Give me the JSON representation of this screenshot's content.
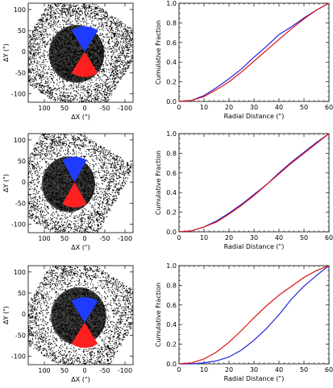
{
  "figure": {
    "rows": [
      {
        "left": {
          "type": "scatter",
          "xlabel": "ΔX (\")",
          "ylabel": "ΔY (\")",
          "xlim": [
            140,
            -120
          ],
          "ylim": [
            -120,
            115
          ],
          "xticks": [
            100,
            50,
            0,
            -50,
            -100
          ],
          "yticks": [
            -100,
            -50,
            0,
            50,
            100
          ],
          "field": {
            "center": [
              20,
              -5
            ],
            "halfwidth": 125,
            "rotation_deg": 33
          },
          "wedges": [
            {
              "name": "blue",
              "color": "#1f3bff",
              "apex": [
                0,
                0
              ],
              "radius": 60,
              "angle_from_deg": 57,
              "angle_to_deg": 123
            },
            {
              "name": "red",
              "color": "#ff1f1f",
              "apex": [
                0,
                0
              ],
              "radius": 60,
              "angle_from_deg": -123,
              "angle_to_deg": -57
            }
          ]
        },
        "right": {
          "type": "line",
          "xlabel": "Radial Distance (\")",
          "ylabel": "Cumulative Fraction",
          "xlim": [
            0,
            60
          ],
          "ylim": [
            0,
            1
          ],
          "xticks": [
            0,
            10,
            20,
            30,
            40,
            50,
            60
          ],
          "yticks": [
            0.0,
            0.2,
            0.4,
            0.6,
            0.8,
            1.0
          ],
          "series": [
            {
              "color": "#2222dd",
              "x": [
                0,
                5,
                10,
                15,
                20,
                25,
                30,
                35,
                40,
                45,
                50,
                55,
                60
              ],
              "y": [
                0,
                0.01,
                0.06,
                0.14,
                0.23,
                0.33,
                0.45,
                0.56,
                0.68,
                0.76,
                0.85,
                0.93,
                1.0
              ]
            },
            {
              "color": "#dd1111",
              "x": [
                0,
                5,
                10,
                15,
                20,
                25,
                30,
                35,
                40,
                45,
                50,
                55,
                60
              ],
              "y": [
                0,
                0.01,
                0.05,
                0.12,
                0.2,
                0.3,
                0.41,
                0.52,
                0.63,
                0.74,
                0.84,
                0.93,
                1.0
              ]
            }
          ]
        }
      },
      {
        "left": {
          "type": "scatter",
          "xlabel": "ΔX (\")",
          "ylabel": "ΔY (\")",
          "xlim": [
            140,
            -120
          ],
          "ylim": [
            -120,
            115
          ],
          "xticks": [
            100,
            50,
            0,
            -50,
            -100
          ],
          "yticks": [
            -100,
            -50,
            0,
            50,
            100
          ],
          "field": {
            "center": [
              40,
              -5
            ],
            "halfwidth": 120,
            "rotation_deg": 30
          },
          "wedges": [
            {
              "name": "blue",
              "color": "#1f3bff",
              "apex": [
                25,
                0
              ],
              "radius": 60,
              "angle_from_deg": 60,
              "angle_to_deg": 120
            },
            {
              "name": "red",
              "color": "#ff1f1f",
              "apex": [
                25,
                0
              ],
              "radius": 60,
              "angle_from_deg": -120,
              "angle_to_deg": -60
            }
          ]
        },
        "right": {
          "type": "line",
          "xlabel": "Radial Distance (\")",
          "ylabel": "Cumulative Fraction",
          "xlim": [
            0,
            60
          ],
          "ylim": [
            0,
            1
          ],
          "xticks": [
            0,
            10,
            20,
            30,
            40,
            50,
            60
          ],
          "yticks": [
            0.0,
            0.2,
            0.4,
            0.6,
            0.8,
            1.0
          ],
          "series": [
            {
              "color": "#2222dd",
              "x": [
                0,
                5,
                10,
                15,
                20,
                25,
                30,
                35,
                40,
                45,
                50,
                55,
                60
              ],
              "y": [
                0,
                0.01,
                0.05,
                0.11,
                0.19,
                0.28,
                0.38,
                0.48,
                0.6,
                0.71,
                0.81,
                0.91,
                1.0
              ]
            },
            {
              "color": "#dd1111",
              "x": [
                0,
                5,
                10,
                15,
                20,
                25,
                30,
                35,
                40,
                45,
                50,
                55,
                60
              ],
              "y": [
                0,
                0.01,
                0.05,
                0.1,
                0.18,
                0.27,
                0.37,
                0.48,
                0.59,
                0.7,
                0.8,
                0.9,
                1.0
              ]
            }
          ]
        }
      },
      {
        "left": {
          "type": "scatter",
          "xlabel": "ΔX (\")",
          "ylabel": "ΔY (\")",
          "xlim": [
            140,
            -120
          ],
          "ylim": [
            -120,
            115
          ],
          "xticks": [
            100,
            50,
            0,
            -50,
            -100
          ],
          "yticks": [
            -100,
            -50,
            0,
            50,
            100
          ],
          "field": {
            "center": [
              15,
              -5
            ],
            "halfwidth": 125,
            "rotation_deg": 32
          },
          "wedges": [
            {
              "name": "blue",
              "color": "#1f3bff",
              "apex": [
                0,
                -20
              ],
              "radius": 60,
              "angle_from_deg": 57,
              "angle_to_deg": 123
            },
            {
              "name": "red",
              "color": "#ff1f1f",
              "apex": [
                0,
                -20
              ],
              "radius": 60,
              "angle_from_deg": -123,
              "angle_to_deg": -57
            }
          ]
        },
        "right": {
          "type": "line",
          "xlabel": "Radial Distance (\")",
          "ylabel": "Cumulative Fraction",
          "xlim": [
            0,
            60
          ],
          "ylim": [
            0,
            1
          ],
          "xticks": [
            0,
            10,
            20,
            30,
            40,
            50,
            60
          ],
          "yticks": [
            0.0,
            0.2,
            0.4,
            0.6,
            0.8,
            1.0
          ],
          "series": [
            {
              "color": "#2222dd",
              "x": [
                0,
                5,
                10,
                15,
                20,
                25,
                30,
                35,
                40,
                45,
                50,
                55,
                60
              ],
              "y": [
                0,
                0.0,
                0.01,
                0.03,
                0.07,
                0.14,
                0.24,
                0.36,
                0.5,
                0.66,
                0.79,
                0.9,
                1.0
              ]
            },
            {
              "color": "#dd1111",
              "x": [
                0,
                5,
                10,
                15,
                20,
                25,
                30,
                35,
                40,
                45,
                50,
                55,
                60
              ],
              "y": [
                0,
                0.01,
                0.05,
                0.12,
                0.22,
                0.34,
                0.47,
                0.59,
                0.7,
                0.79,
                0.88,
                0.95,
                1.0
              ]
            }
          ]
        }
      }
    ]
  }
}
